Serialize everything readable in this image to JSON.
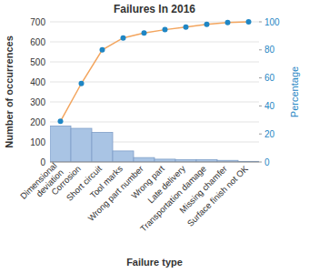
{
  "chart_data": {
    "type": "pareto",
    "title": "Failures In 2016",
    "x_label": "Failure type",
    "y_label": "Number of occurrences",
    "y2_label": "Percentage",
    "categories": [
      "Dimensional deviation",
      "Corrosion",
      "Short circuit",
      "Tool marks",
      "Wrong part number",
      "Wrong part",
      "Late delivery",
      "Transportation damage",
      "Missing chamfer",
      "Surface finish not OK"
    ],
    "series": [
      {
        "type": "bar",
        "color": "#a9c4e4",
        "values": [
          180,
          168,
          148,
          55,
          22,
          14,
          12,
          12,
          8,
          3
        ]
      },
      {
        "type": "line",
        "axis": "y2",
        "color": "#f3a55e",
        "marker": "circle",
        "values": [
          29,
          56,
          80,
          88.5,
          92,
          94.4,
          96.3,
          98.2,
          99.5,
          100
        ]
      }
    ],
    "ylim": [
      0,
      700
    ],
    "yticks": [
      0,
      100,
      200,
      300,
      400,
      500,
      600,
      700
    ],
    "y2lim": [
      0,
      100
    ],
    "y2ticks": [
      0,
      20,
      40,
      60,
      80,
      100
    ],
    "grid": true
  }
}
